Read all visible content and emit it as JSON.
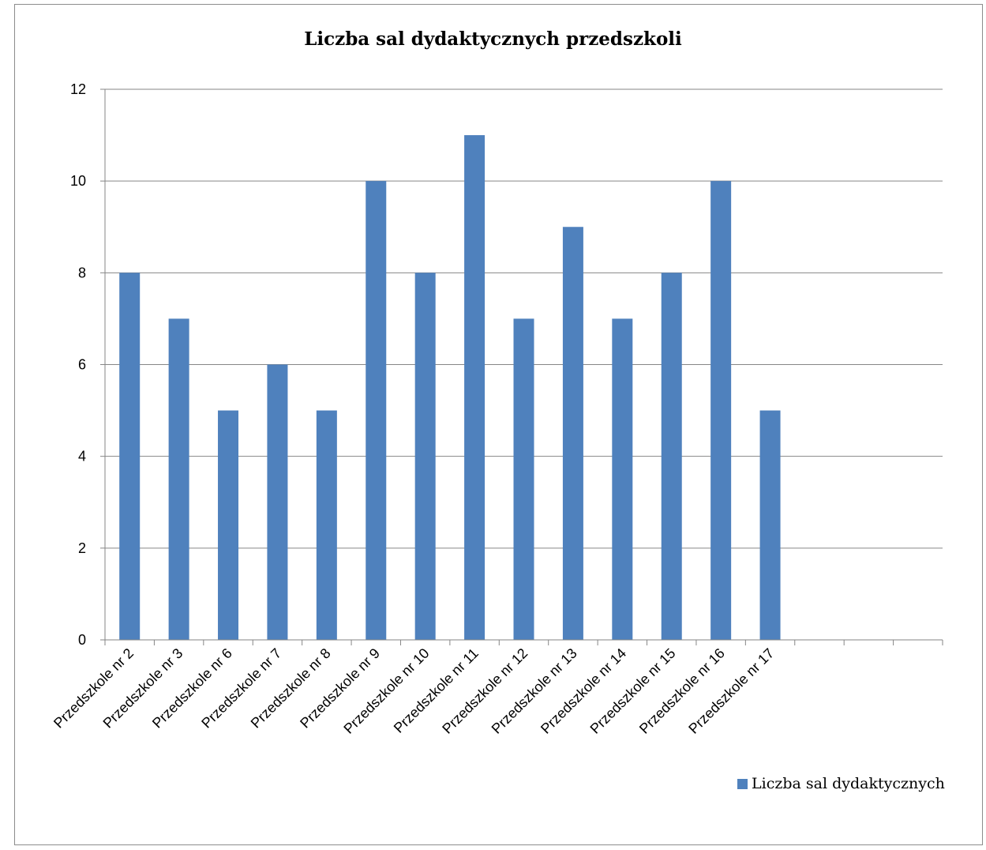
{
  "chart_data": {
    "type": "bar",
    "title": "Liczba sal dydaktycznych przedszkoli",
    "categories": [
      "Przedszkole nr 2",
      "Przedszkole nr 3",
      "Przedszkole nr 6",
      "Przedszkole nr 7",
      "Przedszkole nr 8",
      "Przedszkole nr 9",
      "Przedszkole nr 10",
      "Przedszkole nr 11",
      "Przedszkole nr 12",
      "Przedszkole nr 13",
      "Przedszkole nr 14",
      "Przedszkole nr 15",
      "Przedszkole nr 16",
      "Przedszkole nr 17",
      "",
      "",
      ""
    ],
    "series": [
      {
        "name": "Liczba sal dydaktycznych",
        "values": [
          8,
          7,
          5,
          6,
          5,
          10,
          8,
          11,
          7,
          9,
          7,
          8,
          10,
          5,
          null,
          null,
          null
        ]
      }
    ],
    "yticks": [
      "0",
      "2",
      "4",
      "6",
      "8",
      "10",
      "12"
    ],
    "ylim": [
      0,
      12
    ],
    "grid": true,
    "legend_position": "bottom-right",
    "bar_color": "#4f81bd"
  }
}
